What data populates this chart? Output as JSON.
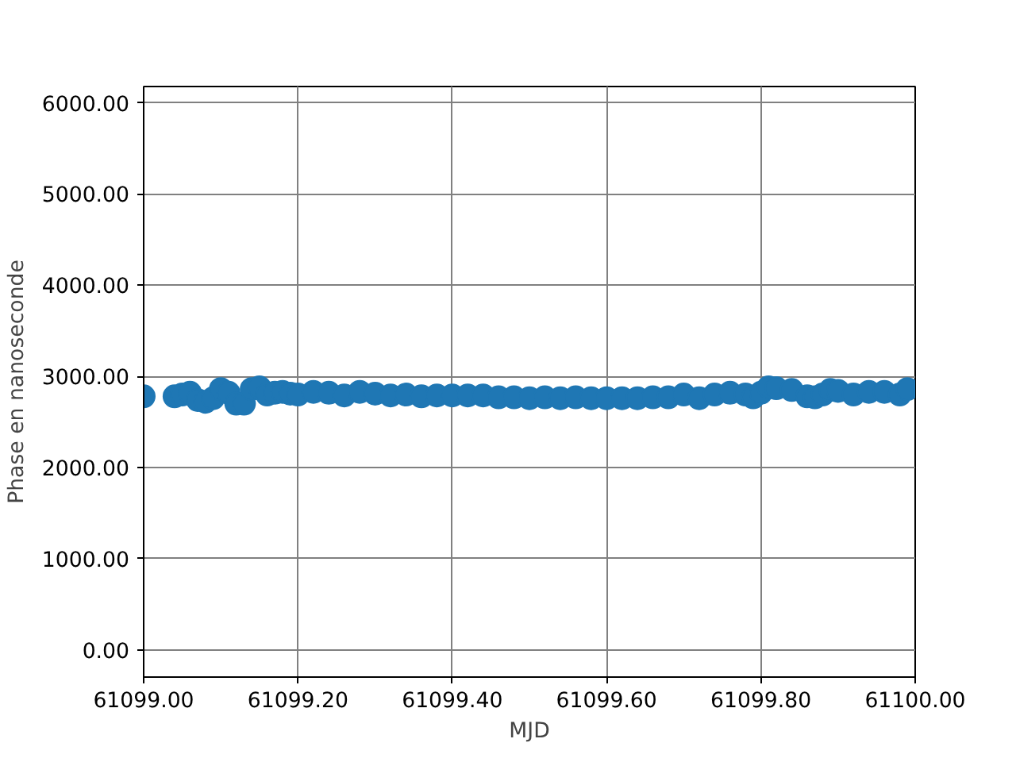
{
  "chart_data": {
    "type": "scatter",
    "xlabel": "MJD",
    "ylabel": "Phase en nanoseconde",
    "x": [
      61099.0,
      61099.04,
      61099.05,
      61099.06,
      61099.07,
      61099.08,
      61099.09,
      61099.1,
      61099.11,
      61099.12,
      61099.13,
      61099.14,
      61099.15,
      61099.16,
      61099.17,
      61099.18,
      61099.19,
      61099.2,
      61099.22,
      61099.24,
      61099.26,
      61099.28,
      61099.3,
      61099.32,
      61099.34,
      61099.36,
      61099.38,
      61099.4,
      61099.42,
      61099.44,
      61099.46,
      61099.48,
      61099.5,
      61099.52,
      61099.54,
      61099.56,
      61099.58,
      61099.6,
      61099.62,
      61099.64,
      61099.66,
      61099.68,
      61099.7,
      61099.72,
      61099.74,
      61099.76,
      61099.78,
      61099.79,
      61099.8,
      61099.81,
      61099.82,
      61099.84,
      61099.86,
      61099.87,
      61099.88,
      61099.89,
      61099.9,
      61099.92,
      61099.94,
      61099.96,
      61099.98,
      61099.99
    ],
    "values": [
      2780,
      2780,
      2800,
      2820,
      2740,
      2720,
      2760,
      2860,
      2820,
      2700,
      2700,
      2860,
      2880,
      2800,
      2820,
      2830,
      2810,
      2800,
      2830,
      2820,
      2790,
      2830,
      2810,
      2790,
      2800,
      2780,
      2790,
      2790,
      2790,
      2790,
      2770,
      2770,
      2760,
      2770,
      2760,
      2770,
      2760,
      2760,
      2760,
      2760,
      2770,
      2770,
      2800,
      2760,
      2800,
      2820,
      2800,
      2770,
      2820,
      2880,
      2870,
      2850,
      2780,
      2770,
      2800,
      2850,
      2840,
      2800,
      2830,
      2830,
      2800,
      2860
    ],
    "color": "#1f77b4",
    "marker": "circle",
    "grid": true,
    "xlim": [
      61099.0,
      61100.0
    ],
    "xticks": [
      {
        "value": 61099.0,
        "label": "61099.00"
      },
      {
        "value": 61099.2,
        "label": "61099.20"
      },
      {
        "value": 61099.4,
        "label": "61099.40"
      },
      {
        "value": 61099.6,
        "label": "61099.60"
      },
      {
        "value": 61099.8,
        "label": "61099.80"
      },
      {
        "value": 61100.0,
        "label": "61100.00"
      }
    ],
    "ylim": [
      -300,
      6180
    ],
    "yticks": [
      {
        "value": 0,
        "label": "0.00"
      },
      {
        "value": 1000,
        "label": "1000.00"
      },
      {
        "value": 2000,
        "label": "2000.00"
      },
      {
        "value": 3000,
        "label": "3000.00"
      },
      {
        "value": 4000,
        "label": "4000.00"
      },
      {
        "value": 5000,
        "label": "5000.00"
      },
      {
        "value": 6000,
        "label": "6000.00"
      }
    ]
  }
}
